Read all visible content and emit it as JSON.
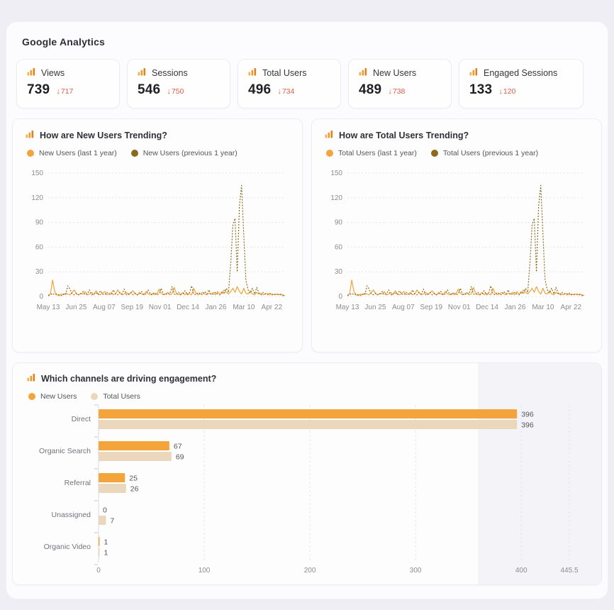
{
  "header": {
    "title": "Google Analytics"
  },
  "labels": {
    "delta_arrow": "↓"
  },
  "colors": {
    "primary_orange": "#F3A43A",
    "previous_brown": "#8B6A1E",
    "total_beige": "#EBD8BC",
    "delta_red": "#E25C49"
  },
  "kpis": [
    {
      "label": "Views",
      "value": "739",
      "delta": "717"
    },
    {
      "label": "Sessions",
      "value": "546",
      "delta": "750"
    },
    {
      "label": "Total Users",
      "value": "496",
      "delta": "734"
    },
    {
      "label": "New Users",
      "value": "489",
      "delta": "738"
    },
    {
      "label": "Engaged Sessions",
      "value": "133",
      "delta": "120"
    }
  ],
  "charts": {
    "trend_left": {
      "title": "How are New Users Trending?",
      "legend": [
        "New Users (last 1 year)",
        "New Users (previous 1 year)"
      ]
    },
    "trend_right": {
      "title": "How are Total Users Trending?",
      "legend": [
        "Total Users (last 1 year)",
        "Total Users (previous 1 year)"
      ]
    },
    "bars": {
      "title": "Which channels are driving engagement?",
      "legend": [
        "New Users",
        "Total Users"
      ]
    }
  },
  "chart_data": [
    {
      "type": "line",
      "title": "How are New Users Trending?",
      "x_ticks": [
        "May 13",
        "Jun 25",
        "Aug 07",
        "Sep 19",
        "Nov 01",
        "Dec 14",
        "Jan 26",
        "Mar 10",
        "Apr 22"
      ],
      "y_ticks": [
        0,
        30,
        60,
        90,
        120,
        150
      ],
      "ylim": [
        0,
        150
      ],
      "grid": "horizontal-dotted",
      "legend_position": "top",
      "series": [
        {
          "name": "New Users (last 1 year)",
          "color": "#F3A43A",
          "dashed": false,
          "values": [
            2,
            3,
            20,
            6,
            2,
            1,
            3,
            2,
            4,
            3,
            2,
            5,
            8,
            3,
            2,
            4,
            3,
            6,
            2,
            3,
            5,
            2,
            7,
            3,
            2,
            4,
            6,
            2,
            3,
            5,
            2,
            3,
            8,
            4,
            2,
            3,
            5,
            2,
            4,
            7,
            3,
            2,
            5,
            3,
            2,
            6,
            3,
            2,
            4,
            2,
            3,
            9,
            4,
            2,
            3,
            5,
            2,
            3,
            11,
            4,
            2,
            3,
            5,
            2,
            4,
            3,
            2,
            10,
            4,
            2,
            3,
            5,
            3,
            2,
            4,
            3,
            5,
            2,
            6,
            3,
            4,
            8,
            5,
            3,
            6,
            10,
            5,
            12,
            6,
            3,
            10,
            4,
            3,
            7,
            3,
            2,
            5,
            3,
            4,
            2,
            3,
            4,
            2,
            3,
            2,
            3,
            2,
            3,
            2,
            1
          ]
        },
        {
          "name": "New Users (previous 1 year)",
          "color": "#8B6A1E",
          "dashed": true,
          "values": [
            1,
            2,
            4,
            2,
            3,
            2,
            1,
            3,
            2,
            13,
            9,
            3,
            2,
            4,
            2,
            3,
            6,
            2,
            3,
            8,
            2,
            3,
            5,
            2,
            7,
            3,
            2,
            5,
            3,
            2,
            8,
            3,
            2,
            5,
            3,
            9,
            2,
            3,
            5,
            2,
            4,
            2,
            3,
            6,
            2,
            3,
            8,
            3,
            2,
            5,
            2,
            3,
            10,
            3,
            2,
            4,
            3,
            12,
            3,
            2,
            5,
            2,
            3,
            7,
            2,
            4,
            13,
            3,
            2,
            5,
            3,
            2,
            6,
            3,
            8,
            2,
            3,
            5,
            3,
            2,
            6,
            3,
            10,
            5,
            40,
            87,
            95,
            30,
            110,
            135,
            75,
            20,
            8,
            4,
            10,
            3,
            11,
            4,
            2,
            5,
            3,
            2,
            4,
            2,
            3,
            2,
            3,
            2,
            1,
            2
          ]
        }
      ]
    },
    {
      "type": "line",
      "title": "How are Total Users Trending?",
      "x_ticks": [
        "May 13",
        "Jun 25",
        "Aug 07",
        "Sep 19",
        "Nov 01",
        "Dec 14",
        "Jan 26",
        "Mar 10",
        "Apr 22"
      ],
      "y_ticks": [
        0,
        30,
        60,
        90,
        120,
        150
      ],
      "ylim": [
        0,
        150
      ],
      "grid": "horizontal-dotted",
      "legend_position": "top",
      "series": [
        {
          "name": "Total Users (last 1 year)",
          "color": "#F3A43A",
          "dashed": false,
          "values": [
            2,
            3,
            20,
            6,
            2,
            1,
            3,
            2,
            4,
            3,
            2,
            5,
            8,
            3,
            2,
            4,
            3,
            6,
            2,
            3,
            5,
            2,
            7,
            3,
            2,
            4,
            6,
            2,
            3,
            5,
            2,
            3,
            8,
            4,
            2,
            3,
            5,
            2,
            4,
            7,
            3,
            2,
            5,
            3,
            2,
            6,
            3,
            2,
            4,
            2,
            3,
            9,
            4,
            2,
            3,
            5,
            2,
            3,
            11,
            4,
            2,
            3,
            5,
            2,
            4,
            3,
            2,
            10,
            4,
            2,
            3,
            5,
            3,
            2,
            4,
            3,
            5,
            2,
            6,
            3,
            4,
            8,
            5,
            3,
            6,
            10,
            5,
            12,
            6,
            3,
            10,
            4,
            3,
            7,
            3,
            2,
            5,
            3,
            4,
            2,
            3,
            4,
            2,
            3,
            2,
            3,
            2,
            3,
            2,
            1
          ]
        },
        {
          "name": "Total Users (previous 1 year)",
          "color": "#8B6A1E",
          "dashed": true,
          "values": [
            1,
            2,
            4,
            2,
            3,
            2,
            1,
            3,
            2,
            13,
            9,
            3,
            2,
            4,
            2,
            3,
            6,
            2,
            3,
            8,
            2,
            3,
            5,
            2,
            7,
            3,
            2,
            5,
            3,
            2,
            8,
            3,
            2,
            5,
            3,
            9,
            2,
            3,
            5,
            2,
            4,
            2,
            3,
            6,
            2,
            3,
            8,
            3,
            2,
            5,
            2,
            3,
            10,
            3,
            2,
            4,
            3,
            12,
            3,
            2,
            5,
            2,
            3,
            7,
            2,
            4,
            13,
            3,
            2,
            5,
            3,
            2,
            6,
            3,
            8,
            2,
            3,
            5,
            3,
            2,
            6,
            3,
            10,
            5,
            40,
            87,
            95,
            30,
            110,
            135,
            75,
            20,
            8,
            4,
            10,
            3,
            11,
            4,
            2,
            5,
            3,
            2,
            4,
            2,
            3,
            2,
            3,
            2,
            1,
            2
          ]
        }
      ]
    },
    {
      "type": "bar",
      "orientation": "horizontal",
      "title": "Which channels are driving engagement?",
      "categories": [
        "Direct",
        "Organic Search",
        "Referral",
        "Unassigned",
        "Organic Video"
      ],
      "series": [
        {
          "name": "New Users",
          "color": "#F3A43A",
          "values": [
            396,
            67,
            25,
            0,
            1
          ]
        },
        {
          "name": "Total Users",
          "color": "#EBD8BC",
          "values": [
            396,
            69,
            26,
            7,
            1
          ]
        }
      ],
      "x_ticks": [
        0,
        100,
        200,
        300,
        400,
        445.5
      ],
      "x_tick_labels": [
        "0",
        "100",
        "200",
        "300",
        "400",
        "445.5"
      ],
      "xlim": [
        0,
        445.5
      ],
      "grid": "vertical-dashed",
      "value_labels": true,
      "legend_position": "top"
    }
  ]
}
